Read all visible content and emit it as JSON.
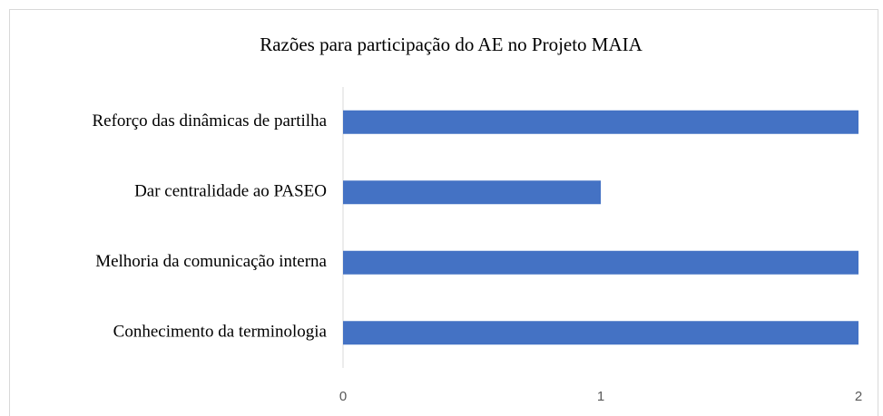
{
  "chart_data": {
    "type": "bar",
    "orientation": "horizontal",
    "title": "Razões para participação do AE no Projeto MAIA",
    "categories": [
      "Reforço das dinâmicas de partilha",
      "Dar centralidade ao PASEO",
      "Melhoria da comunicação interna",
      "Conhecimento da terminologia"
    ],
    "values": [
      2,
      1,
      2,
      2
    ],
    "color": "#4472c4",
    "xlim": [
      0,
      2
    ],
    "xticks": [
      0,
      1,
      2
    ],
    "grid": false
  }
}
